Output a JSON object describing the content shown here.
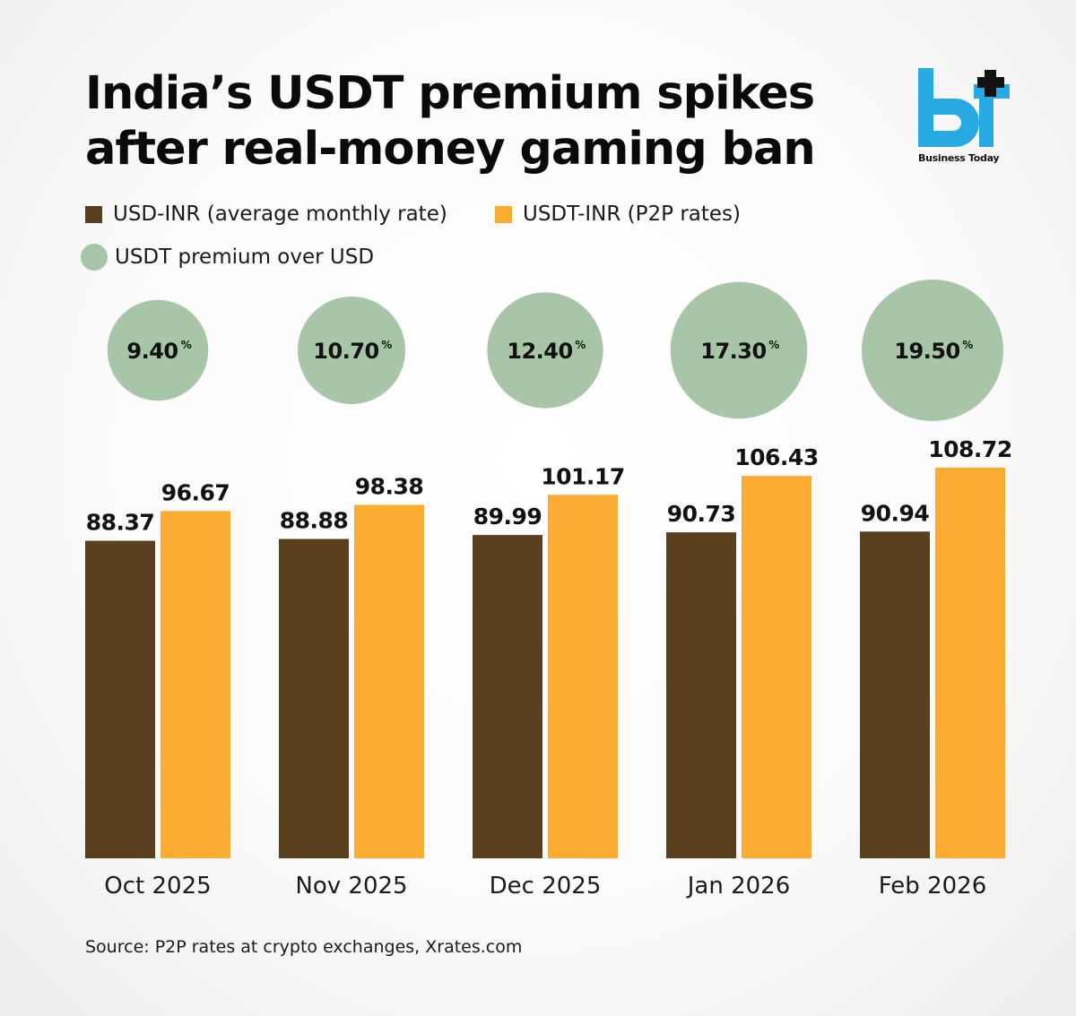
{
  "title_lines": [
    "India’s USDT premium spikes",
    "after real-money gaming ban"
  ],
  "logo": {
    "text": "Business Today",
    "mark": "bt",
    "color_blue": "#29a9e1",
    "color_dark": "#111111"
  },
  "legend": {
    "usd_inr": "USD-INR (average monthly rate)",
    "usdt_inr": "USDT-INR (P2P rates)",
    "premium": "USDT premium over USD"
  },
  "source": "Source: P2P rates at crypto exchanges, Xrates.com",
  "colors": {
    "usd_inr": "#5a3f1e",
    "usdt_inr": "#fcab33",
    "premium": "#a8c5a8"
  },
  "chart_data": {
    "type": "bar",
    "title": "India’s USDT premium spikes after real-money gaming ban",
    "categories": [
      "Oct 2025",
      "Nov 2025",
      "Dec 2025",
      "Jan 2026",
      "Feb 2026"
    ],
    "series": [
      {
        "name": "USD-INR (average monthly rate)",
        "values": [
          88.37,
          88.88,
          89.99,
          90.73,
          90.94
        ],
        "labels": [
          "88.37",
          "88.88",
          "89.99",
          "90.73",
          "90.94"
        ]
      },
      {
        "name": "USDT-INR (P2P rates)",
        "values": [
          96.67,
          98.38,
          101.17,
          106.43,
          108.72
        ],
        "labels": [
          "96.67",
          "98.38",
          "101.17",
          "106.43",
          "108.72"
        ]
      }
    ],
    "premium": {
      "name": "USDT premium over USD",
      "values": [
        9.4,
        10.7,
        12.4,
        17.3,
        19.5
      ],
      "labels": [
        "9.40",
        "10.70",
        "12.40",
        "17.30",
        "19.50"
      ],
      "unit": "%"
    },
    "xlabel": "",
    "ylabel": "",
    "ylim": [
      0,
      108.72
    ],
    "grid": false
  }
}
